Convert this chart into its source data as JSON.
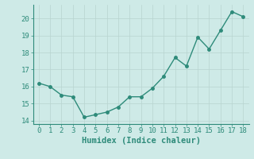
{
  "x": [
    0,
    1,
    2,
    3,
    4,
    5,
    6,
    7,
    8,
    9,
    10,
    11,
    12,
    13,
    14,
    15,
    16,
    17,
    18
  ],
  "y": [
    16.2,
    16.0,
    15.5,
    15.4,
    14.2,
    14.35,
    14.5,
    14.8,
    15.4,
    15.4,
    15.9,
    16.6,
    17.7,
    17.2,
    18.9,
    18.2,
    19.3,
    20.4,
    20.1
  ],
  "line_color": "#2e8b7a",
  "marker_color": "#2e8b7a",
  "bg_color": "#ceeae7",
  "grid_color": "#b8d4d0",
  "xlabel": "Humidex (Indice chaleur)",
  "xlim": [
    -0.5,
    18.5
  ],
  "ylim": [
    13.8,
    20.8
  ],
  "yticks": [
    14,
    15,
    16,
    17,
    18,
    19,
    20
  ],
  "xticks": [
    0,
    1,
    2,
    3,
    4,
    5,
    6,
    7,
    8,
    9,
    10,
    11,
    12,
    13,
    14,
    15,
    16,
    17,
    18
  ],
  "xlabel_fontsize": 7.5,
  "tick_fontsize": 6.5,
  "line_width": 1.0,
  "marker_size": 2.5
}
